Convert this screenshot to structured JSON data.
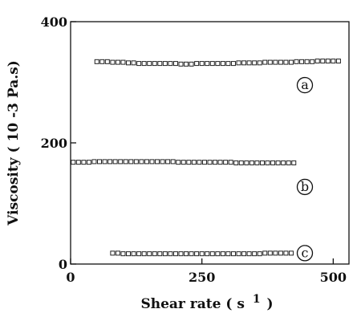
{
  "chart_data": {
    "type": "scatter",
    "xlabel": "Shear rate ( s",
    "xlabel_sup": "1",
    "xlabel_close": ")",
    "ylabel": "Viscosity ( 10 -3 Pa.s)",
    "xlim": [
      0,
      530
    ],
    "ylim": [
      0,
      400
    ],
    "xticks": [
      0,
      250,
      500
    ],
    "yticks": [
      0,
      200,
      400
    ],
    "grid": false,
    "marker": "open-square",
    "series": [
      {
        "name": "a",
        "x": [
          50,
          60,
          70,
          80,
          90,
          100,
          110,
          120,
          130,
          140,
          150,
          160,
          170,
          180,
          190,
          200,
          210,
          220,
          230,
          240,
          250,
          260,
          270,
          280,
          290,
          300,
          310,
          320,
          330,
          340,
          350,
          360,
          370,
          380,
          390,
          400,
          410,
          420,
          430,
          440,
          450,
          460,
          470,
          480,
          490,
          500,
          510
        ],
        "y": [
          334,
          334,
          334,
          333,
          333,
          333,
          332,
          332,
          331,
          331,
          331,
          331,
          331,
          331,
          331,
          331,
          330,
          330,
          330,
          331,
          331,
          331,
          331,
          331,
          331,
          331,
          331,
          332,
          332,
          332,
          332,
          332,
          333,
          333,
          333,
          333,
          333,
          333,
          334,
          334,
          334,
          334,
          335,
          335,
          335,
          335,
          335
        ]
      },
      {
        "name": "b",
        "x": [
          5,
          15,
          25,
          35,
          45,
          55,
          65,
          75,
          85,
          95,
          105,
          115,
          125,
          135,
          145,
          155,
          165,
          175,
          185,
          195,
          205,
          215,
          225,
          235,
          245,
          255,
          265,
          275,
          285,
          295,
          305,
          315,
          325,
          335,
          345,
          355,
          365,
          375,
          385,
          395,
          405,
          415,
          425
        ],
        "y": [
          168,
          168,
          168,
          168,
          169,
          169,
          169,
          169,
          169,
          169,
          169,
          169,
          169,
          169,
          169,
          169,
          169,
          169,
          169,
          169,
          168,
          168,
          168,
          168,
          168,
          168,
          168,
          168,
          168,
          168,
          168,
          167,
          167,
          167,
          167,
          167,
          167,
          167,
          167,
          167,
          167,
          167,
          167
        ]
      },
      {
        "name": "c",
        "x": [
          80,
          90,
          100,
          110,
          120,
          130,
          140,
          150,
          160,
          170,
          180,
          190,
          200,
          210,
          220,
          230,
          240,
          250,
          260,
          270,
          280,
          290,
          300,
          310,
          320,
          330,
          340,
          350,
          360,
          370,
          380,
          390,
          400,
          410,
          420
        ],
        "y": [
          18,
          18,
          17,
          17,
          17,
          17,
          17,
          17,
          17,
          17,
          17,
          17,
          17,
          17,
          17,
          17,
          17,
          17,
          17,
          17,
          17,
          17,
          17,
          17,
          17,
          17,
          17,
          17,
          17,
          18,
          18,
          18,
          18,
          18,
          18
        ]
      }
    ]
  }
}
